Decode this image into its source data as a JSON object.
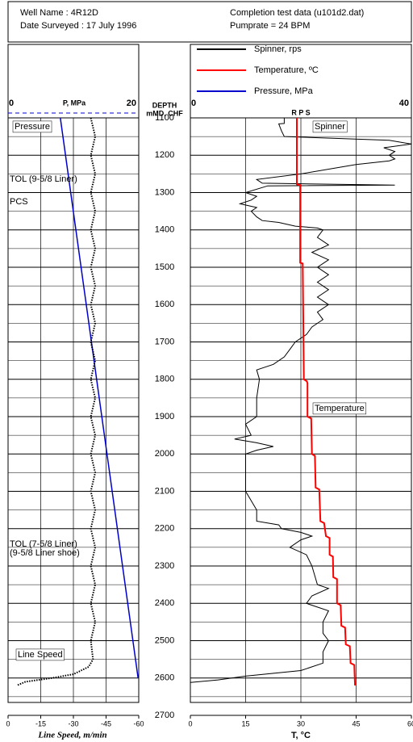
{
  "chart_data": {
    "type": "well-log",
    "header": {
      "well_name": "Well Name : 4R12D",
      "date_surveyed": "Date Surveyed : 17 July 1996",
      "data_file": "Completion test data (u101d2.dat)",
      "pumprate": "Pumprate = 24 BPM"
    },
    "depth_label": [
      "DEPTH",
      "mMD, CHF"
    ],
    "ylim": [
      1100,
      2700
    ],
    "yticks": [
      1100,
      1200,
      1300,
      1400,
      1500,
      1600,
      1700,
      1800,
      1900,
      2000,
      2100,
      2200,
      2300,
      2400,
      2500,
      2600,
      2700
    ],
    "y_minor_ticks": [
      1150,
      1250,
      1350,
      1450,
      1550,
      1650,
      1750,
      1850,
      1950,
      2050,
      2150,
      2250,
      2350,
      2450,
      2550,
      2650
    ],
    "axes": {
      "pressure": {
        "label": "P, MPa",
        "lim": [
          0,
          20
        ],
        "ticks": [
          0,
          20
        ]
      },
      "line_speed": {
        "label": "Line Speed, m/min",
        "lim": [
          0,
          -60
        ],
        "ticks": [
          0,
          -15,
          -30,
          -45,
          -60
        ]
      },
      "rps": {
        "label": "R P S",
        "lim": [
          0,
          40
        ],
        "ticks": [
          0,
          40
        ]
      },
      "temperature": {
        "label": "T, °C",
        "lim": [
          0,
          60
        ],
        "ticks": [
          0,
          15,
          30,
          45,
          60
        ]
      }
    },
    "series": [
      {
        "name": "Spinner, rps",
        "color": "#000000",
        "axis": "rps",
        "legend": true,
        "style": "solid",
        "depth": [
          1100,
          1115,
          1116,
          1135,
          1150,
          1160,
          1170,
          1180,
          1190,
          1200,
          1210,
          1215,
          1225,
          1250,
          1265,
          1275,
          1280,
          1282,
          1300,
          1310,
          1320,
          1330,
          1340,
          1350,
          1365,
          1375,
          1380,
          1390,
          1395,
          1400,
          1420,
          1440,
          1460,
          1480,
          1500,
          1520,
          1540,
          1560,
          1580,
          1600,
          1620,
          1640,
          1660,
          1680,
          1700,
          1720,
          1740,
          1760,
          1775,
          1800,
          1850,
          1900,
          1920,
          1950,
          1960,
          1970,
          1980,
          1990,
          2000,
          2050,
          2100,
          2150,
          2180,
          2190,
          2200,
          2210,
          2220,
          2230,
          2250,
          2270,
          2300,
          2350,
          2360,
          2380,
          2400,
          2420,
          2450,
          2480,
          2500,
          2530,
          2560,
          2580,
          2595,
          2605,
          2612
        ],
        "values": [
          17,
          17,
          16,
          16.5,
          17,
          36,
          40,
          35,
          37,
          36,
          37,
          36,
          30,
          20,
          12,
          13,
          37,
          14,
          10,
          12,
          11,
          9,
          12,
          11,
          12,
          13,
          16,
          19,
          23,
          24,
          23,
          25,
          22,
          25,
          23,
          25,
          23,
          25,
          23,
          25,
          23,
          24,
          22,
          21,
          19,
          18,
          17,
          15,
          12,
          12.5,
          12,
          12,
          10,
          11,
          8,
          12,
          15,
          12,
          10,
          10,
          10,
          12,
          12,
          16,
          16.5,
          20,
          22,
          20,
          18,
          21,
          22,
          23,
          25,
          22,
          21,
          25,
          24,
          24,
          25,
          24,
          24,
          20,
          10,
          5,
          0
        ]
      },
      {
        "name": "Temperature, ºC",
        "color": "#ff0000",
        "axis": "temperature",
        "legend": true,
        "style": "solid",
        "depth": [
          1100,
          1278,
          1280,
          1488,
          1490,
          1800,
          1805,
          1810,
          1900,
          1905,
          2000,
          2005,
          2090,
          2095,
          2180,
          2185,
          2220,
          2225,
          2270,
          2275,
          2330,
          2335,
          2400,
          2405,
          2460,
          2465,
          2510,
          2515,
          2560,
          2565,
          2620
        ],
        "values": [
          28.9,
          28.9,
          29.8,
          29.8,
          30.5,
          30.8,
          31.6,
          31.8,
          31.8,
          32.8,
          33,
          33.8,
          34,
          35,
          35.3,
          36.3,
          36.8,
          37.8,
          37.8,
          38.7,
          38.8,
          39.8,
          39.8,
          40.8,
          41,
          42,
          42.2,
          43.3,
          43.5,
          44.5,
          44.7
        ]
      },
      {
        "name": "Pressure, MPa",
        "color": "#0000cc",
        "axis": "pressure",
        "legend": true,
        "style": "solid",
        "depth": [
          1100,
          2600
        ],
        "values": [
          8.0,
          19.9
        ]
      },
      {
        "name": "Line Speed",
        "color": "#000000",
        "axis": "line_speed",
        "legend": false,
        "style": "dotted",
        "depth": [
          1100,
          1150,
          1200,
          1250,
          1300,
          1350,
          1400,
          1450,
          1500,
          1550,
          1600,
          1650,
          1700,
          1750,
          1800,
          1850,
          1900,
          1950,
          2000,
          2050,
          2100,
          2150,
          2200,
          2250,
          2300,
          2350,
          2400,
          2450,
          2500,
          2550,
          2570,
          2590,
          2600,
          2610,
          2620
        ],
        "values": [
          -38,
          -40,
          -38,
          -40,
          -38,
          -40,
          -38,
          -40,
          -38,
          -40,
          -38,
          -40,
          -38,
          -40,
          -38,
          -40,
          -38,
          -40,
          -38,
          -40,
          -38,
          -40,
          -38,
          -40,
          -38,
          -40,
          -38,
          -40,
          -38,
          -39,
          -37,
          -30,
          -20,
          -8,
          -4
        ]
      }
    ],
    "annotations": [
      {
        "text": "Pressure",
        "track": "left",
        "boxed": true
      },
      {
        "text": "TOL (9-5/8 Liner)",
        "track": "left",
        "boxed": false
      },
      {
        "text": "PCS",
        "track": "left",
        "boxed": false
      },
      {
        "text": "TOL (7-5/8 Liner)",
        "track": "left",
        "boxed": false
      },
      {
        "text": "(9-5/8  Liner shoe)",
        "track": "left",
        "boxed": false
      },
      {
        "text": "Line Speed",
        "track": "left",
        "boxed": true
      },
      {
        "text": "Spinner",
        "track": "right",
        "boxed": true
      },
      {
        "text": "Temperature",
        "track": "right",
        "boxed": true
      }
    ]
  }
}
